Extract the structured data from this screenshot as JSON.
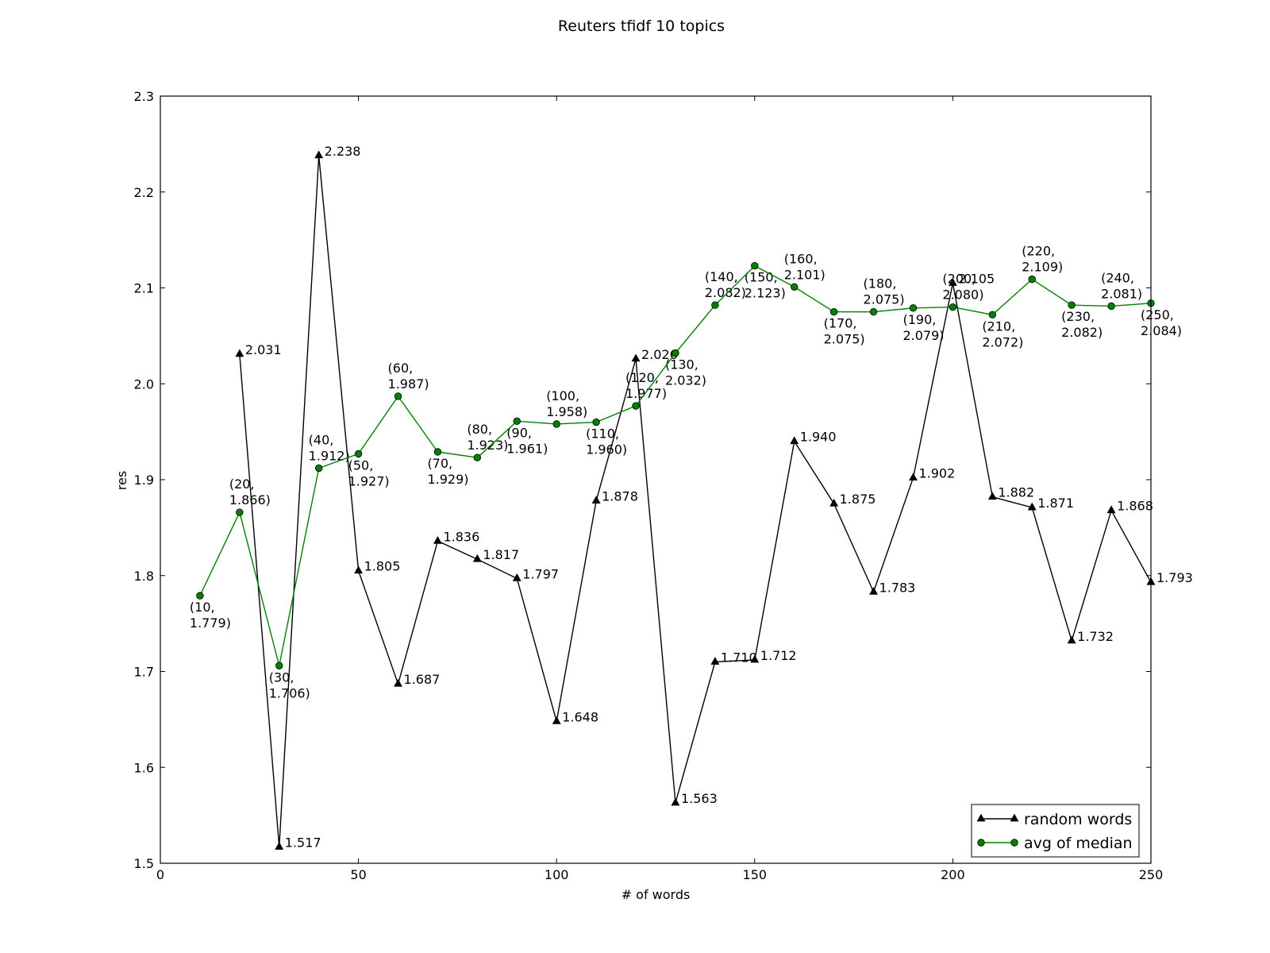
{
  "chart_data": {
    "type": "line",
    "title": "Reuters tfidf  10 topics",
    "xlabel": "# of words",
    "ylabel": "res",
    "xlim": [
      0,
      250
    ],
    "ylim": [
      1.5,
      2.3
    ],
    "xticks": [
      "0",
      "50",
      "100",
      "150",
      "200",
      "250"
    ],
    "yticks": [
      "1.5",
      "1.6",
      "1.7",
      "1.8",
      "1.9",
      "2.0",
      "2.1",
      "2.2",
      "2.3"
    ],
    "grid": false,
    "legend_position": "lower-right",
    "series": [
      {
        "name": "random words",
        "color": "#000000",
        "marker": "triangle",
        "x": [
          20,
          30,
          40,
          50,
          60,
          70,
          80,
          90,
          100,
          110,
          120,
          130,
          140,
          150,
          160,
          170,
          180,
          190,
          200,
          210,
          220,
          230,
          240,
          250
        ],
        "y": [
          2.031,
          1.517,
          2.238,
          1.805,
          1.687,
          1.836,
          1.817,
          1.797,
          1.648,
          1.878,
          2.026,
          1.563,
          1.71,
          1.712,
          1.94,
          1.875,
          1.783,
          1.902,
          2.105,
          1.882,
          1.871,
          1.732,
          1.868,
          1.793
        ],
        "labels": [
          "2.031",
          "1.517",
          "2.238",
          "1.805",
          "1.687",
          "1.836",
          "1.817",
          "1.797",
          "1.648",
          "1.878",
          "2.026",
          "1.563",
          "1.710",
          "1.712",
          "1.940",
          "1.875",
          "1.783",
          "1.902",
          "2.105",
          "1.882",
          "1.871",
          "1.732",
          "1.868",
          "1.793"
        ]
      },
      {
        "name": "avg of median",
        "color": "#008000",
        "marker": "circle",
        "x": [
          10,
          20,
          30,
          40,
          50,
          60,
          70,
          80,
          90,
          100,
          110,
          120,
          130,
          140,
          150,
          160,
          170,
          180,
          190,
          200,
          210,
          220,
          230,
          240,
          250
        ],
        "y": [
          1.779,
          1.866,
          1.706,
          1.912,
          1.927,
          1.987,
          1.929,
          1.923,
          1.961,
          1.958,
          1.96,
          1.977,
          2.032,
          2.082,
          2.123,
          2.101,
          2.075,
          2.075,
          2.079,
          2.08,
          2.072,
          2.109,
          2.082,
          2.081,
          2.084
        ],
        "labels": [
          [
            "(10,",
            "1.779)"
          ],
          [
            "(20,",
            "1.866)"
          ],
          [
            "(30,",
            "1.706)"
          ],
          [
            "(40,",
            "1.912)"
          ],
          [
            "(50,",
            "1.927)"
          ],
          [
            "(60,",
            "1.987)"
          ],
          [
            "(70,",
            "1.929)"
          ],
          [
            "(80,",
            "1.923)"
          ],
          [
            "(90,",
            "1.961)"
          ],
          [
            "(100,",
            "1.958)"
          ],
          [
            "(110,",
            "1.960)"
          ],
          [
            "(120,",
            "1.977)"
          ],
          [
            "(130,",
            "2.032)"
          ],
          [
            "(140,",
            "2.082)"
          ],
          [
            "(150,",
            "2.123)"
          ],
          [
            "(160,",
            "2.101)"
          ],
          [
            "(170,",
            "2.075)"
          ],
          [
            "(180,",
            "2.075)"
          ],
          [
            "(190,",
            "2.079)"
          ],
          [
            "(200,",
            "2.080)"
          ],
          [
            "(210,",
            "2.072)"
          ],
          [
            "(220,",
            "2.109)"
          ],
          [
            "(230,",
            "2.082)"
          ],
          [
            "(240,",
            "2.081)"
          ],
          [
            "(250,",
            "2.084)"
          ]
        ]
      }
    ]
  }
}
